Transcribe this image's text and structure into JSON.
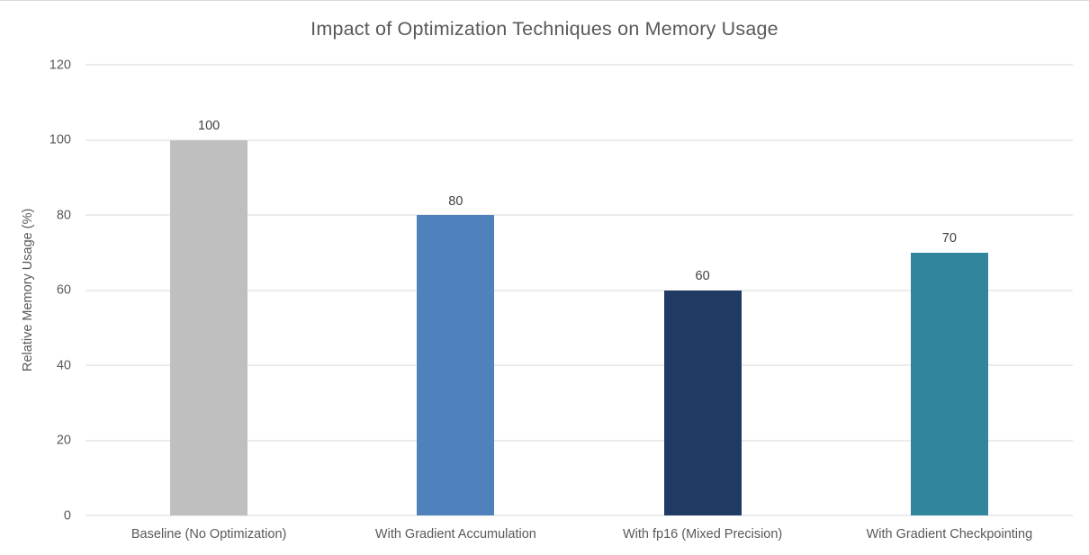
{
  "chart_data": {
    "type": "bar",
    "title": "Impact of Optimization Techniques on Memory Usage",
    "xlabel": "",
    "ylabel": "Relative Memory Usage (%)",
    "categories": [
      "Baseline (No Optimization)",
      "With Gradient Accumulation",
      "With fp16 (Mixed Precision)",
      "With Gradient Checkpointing"
    ],
    "values": [
      100,
      80,
      60,
      70
    ],
    "data_labels": [
      "100",
      "80",
      "60",
      "70"
    ],
    "bar_colors": [
      "#BFBFBF",
      "#4F81BD",
      "#1F3B64",
      "#31859C"
    ],
    "ylim": [
      0,
      120
    ],
    "yticks": [
      0,
      20,
      40,
      60,
      80,
      100,
      120
    ],
    "grid": "horizontal",
    "gridline_color": "#D9D9D9",
    "legend": "none",
    "title_color": "#595959",
    "axis_text_color": "#595959",
    "data_label_color": "#404040"
  }
}
